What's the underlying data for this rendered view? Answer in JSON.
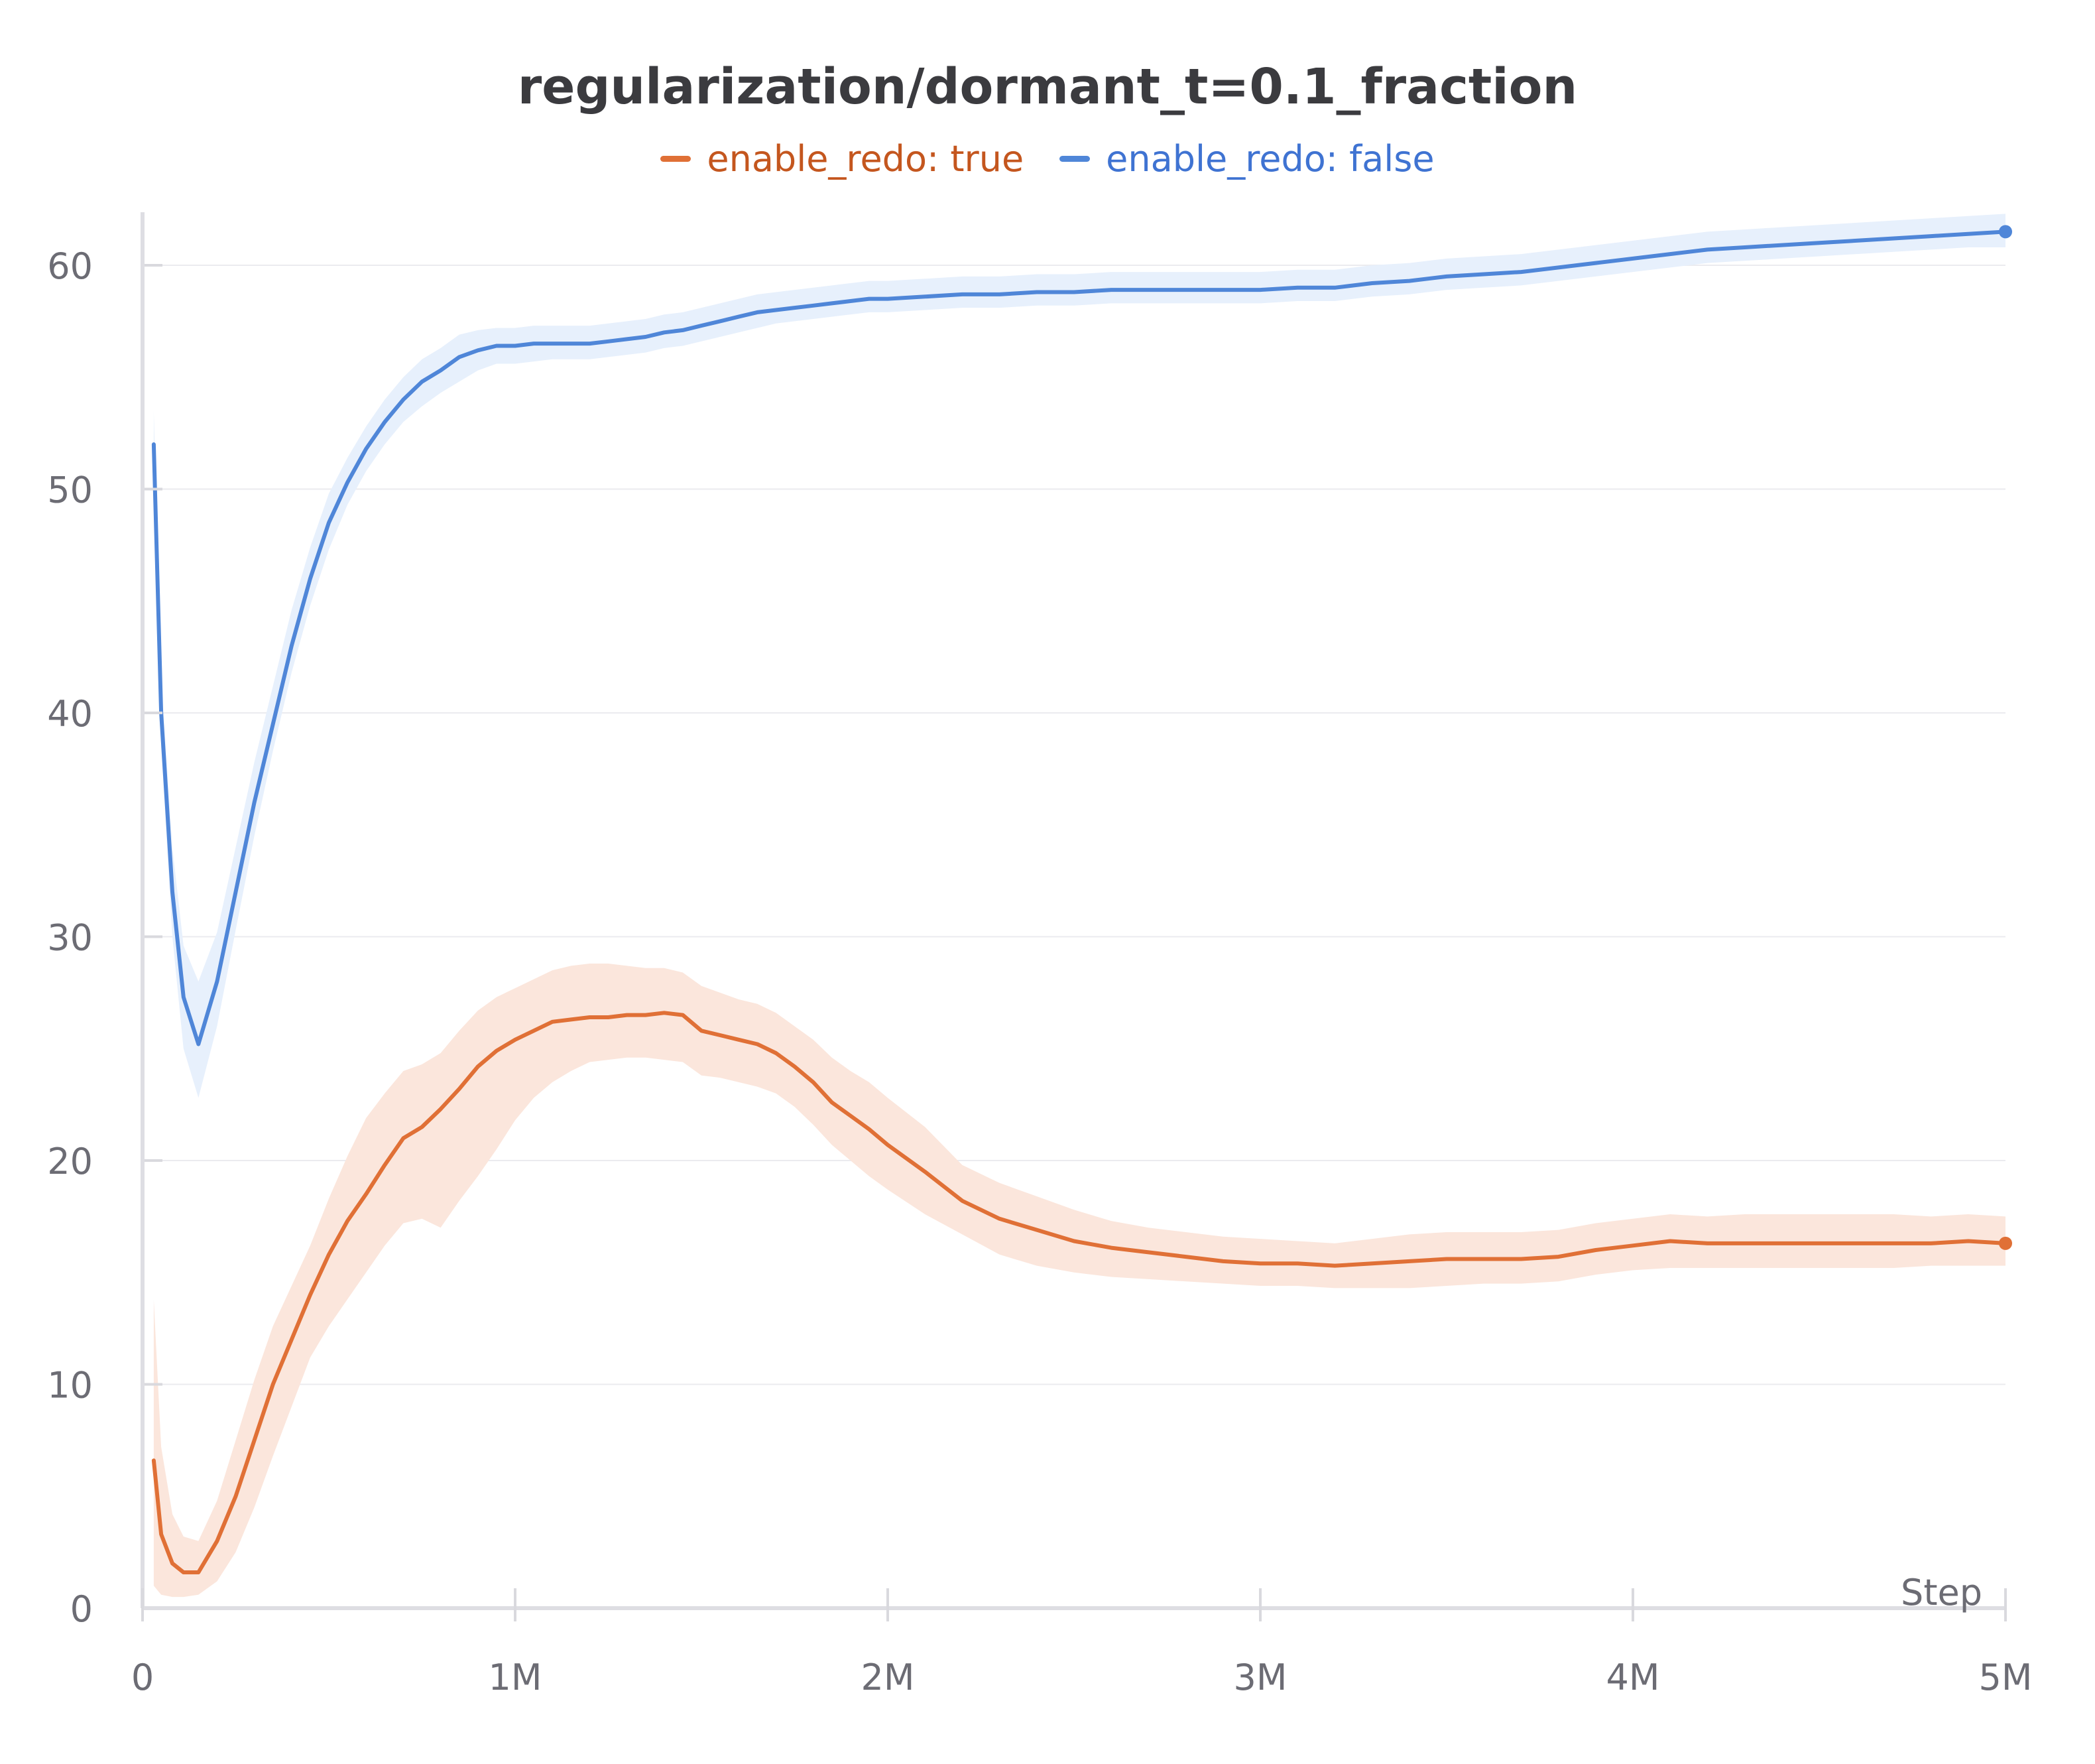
{
  "chart_data": {
    "type": "line",
    "title": "regularization/dormant_t=0.1_fraction",
    "xlabel": "Step",
    "ylabel": "",
    "xlim": [
      0,
      5000000
    ],
    "ylim": [
      0,
      62
    ],
    "grid": true,
    "legend_position": "top-center",
    "x_ticks": [
      {
        "value": 0,
        "label": "0"
      },
      {
        "value": 1000000,
        "label": "1M"
      },
      {
        "value": 2000000,
        "label": "2M"
      },
      {
        "value": 3000000,
        "label": "3M"
      },
      {
        "value": 4000000,
        "label": "4M"
      },
      {
        "value": 5000000,
        "label": "5M"
      }
    ],
    "y_ticks": [
      {
        "value": 0,
        "label": "0"
      },
      {
        "value": 10,
        "label": "10"
      },
      {
        "value": 20,
        "label": "20"
      },
      {
        "value": 30,
        "label": "30"
      },
      {
        "value": 40,
        "label": "40"
      },
      {
        "value": 50,
        "label": "50"
      },
      {
        "value": 60,
        "label": "60"
      }
    ],
    "series": [
      {
        "name": "enable_redo: true",
        "color": "#e07036",
        "band_color": "#fbe6dc",
        "legend_text_color": "#c4561e",
        "x": [
          30000,
          50000,
          80000,
          110000,
          150000,
          200000,
          250000,
          300000,
          350000,
          400000,
          450000,
          500000,
          550000,
          600000,
          650000,
          700000,
          750000,
          800000,
          850000,
          900000,
          950000,
          1000000,
          1050000,
          1100000,
          1150000,
          1200000,
          1250000,
          1300000,
          1350000,
          1400000,
          1450000,
          1500000,
          1550000,
          1600000,
          1650000,
          1700000,
          1750000,
          1800000,
          1850000,
          1900000,
          1950000,
          2000000,
          2100000,
          2200000,
          2300000,
          2400000,
          2500000,
          2600000,
          2700000,
          2800000,
          2900000,
          3000000,
          3100000,
          3200000,
          3300000,
          3400000,
          3500000,
          3600000,
          3700000,
          3800000,
          3900000,
          4000000,
          4100000,
          4200000,
          4300000,
          4400000,
          4500000,
          4600000,
          4700000,
          4800000,
          4900000,
          5000000
        ],
        "y": [
          6.6,
          3.3,
          2.0,
          1.6,
          1.6,
          3.0,
          5.0,
          7.5,
          10.0,
          12.0,
          14.0,
          15.8,
          17.3,
          18.5,
          19.8,
          21.0,
          21.5,
          22.3,
          23.2,
          24.2,
          24.9,
          25.4,
          25.8,
          26.2,
          26.3,
          26.4,
          26.4,
          26.5,
          26.5,
          26.6,
          26.5,
          25.8,
          25.6,
          25.4,
          25.2,
          24.8,
          24.2,
          23.5,
          22.6,
          22.0,
          21.4,
          20.7,
          19.5,
          18.2,
          17.4,
          16.9,
          16.4,
          16.1,
          15.9,
          15.7,
          15.5,
          15.4,
          15.4,
          15.3,
          15.4,
          15.5,
          15.6,
          15.6,
          15.6,
          15.7,
          16.0,
          16.2,
          16.4,
          16.3,
          16.3,
          16.3,
          16.3,
          16.3,
          16.3,
          16.3,
          16.4,
          16.3
        ],
        "lower": [
          1.0,
          0.6,
          0.5,
          0.5,
          0.6,
          1.2,
          2.5,
          4.5,
          6.8,
          9.0,
          11.2,
          12.6,
          13.8,
          15.0,
          16.2,
          17.2,
          17.4,
          17.0,
          18.2,
          19.3,
          20.5,
          21.8,
          22.8,
          23.5,
          24.0,
          24.4,
          24.5,
          24.6,
          24.6,
          24.5,
          24.4,
          23.8,
          23.7,
          23.5,
          23.3,
          23.0,
          22.4,
          21.6,
          20.7,
          20.0,
          19.3,
          18.7,
          17.6,
          16.7,
          15.8,
          15.3,
          15.0,
          14.8,
          14.7,
          14.6,
          14.5,
          14.4,
          14.4,
          14.3,
          14.3,
          14.3,
          14.4,
          14.5,
          14.5,
          14.6,
          14.9,
          15.1,
          15.2,
          15.2,
          15.2,
          15.2,
          15.2,
          15.2,
          15.2,
          15.3,
          15.3,
          15.3
        ],
        "upper": [
          13.8,
          7.2,
          4.2,
          3.2,
          3.0,
          4.8,
          7.5,
          10.2,
          12.6,
          14.4,
          16.2,
          18.3,
          20.2,
          21.9,
          23.0,
          24.0,
          24.3,
          24.8,
          25.8,
          26.7,
          27.3,
          27.7,
          28.1,
          28.5,
          28.7,
          28.8,
          28.8,
          28.7,
          28.6,
          28.6,
          28.4,
          27.8,
          27.5,
          27.2,
          27.0,
          26.6,
          26.0,
          25.4,
          24.6,
          24.0,
          23.5,
          22.8,
          21.5,
          19.8,
          19.0,
          18.4,
          17.8,
          17.3,
          17.0,
          16.8,
          16.6,
          16.5,
          16.4,
          16.3,
          16.5,
          16.7,
          16.8,
          16.8,
          16.8,
          16.9,
          17.2,
          17.4,
          17.6,
          17.5,
          17.6,
          17.6,
          17.6,
          17.6,
          17.6,
          17.5,
          17.6,
          17.5
        ]
      },
      {
        "name": "enable_redo: false",
        "color": "#4f86d8",
        "band_color": "#e7f0fc",
        "legend_text_color": "#3f73d2",
        "x": [
          30000,
          50000,
          80000,
          110000,
          150000,
          200000,
          250000,
          300000,
          350000,
          400000,
          450000,
          500000,
          550000,
          600000,
          650000,
          700000,
          750000,
          800000,
          850000,
          900000,
          950000,
          1000000,
          1050000,
          1100000,
          1150000,
          1200000,
          1250000,
          1300000,
          1350000,
          1400000,
          1450000,
          1500000,
          1550000,
          1600000,
          1650000,
          1700000,
          1750000,
          1800000,
          1850000,
          1900000,
          1950000,
          2000000,
          2100000,
          2200000,
          2300000,
          2400000,
          2500000,
          2600000,
          2700000,
          2800000,
          2900000,
          3000000,
          3100000,
          3200000,
          3300000,
          3400000,
          3500000,
          3600000,
          3700000,
          3800000,
          3900000,
          4000000,
          4100000,
          4200000,
          4300000,
          4400000,
          4500000,
          4600000,
          4700000,
          4800000,
          4900000,
          5000000
        ],
        "y": [
          52.0,
          40.0,
          32.0,
          27.3,
          25.2,
          28.0,
          32.0,
          36.0,
          39.5,
          43.0,
          46.0,
          48.5,
          50.3,
          51.8,
          53.0,
          54.0,
          54.8,
          55.3,
          55.9,
          56.2,
          56.4,
          56.4,
          56.5,
          56.5,
          56.5,
          56.5,
          56.6,
          56.7,
          56.8,
          57.0,
          57.1,
          57.3,
          57.5,
          57.7,
          57.9,
          58.0,
          58.1,
          58.2,
          58.3,
          58.4,
          58.5,
          58.5,
          58.6,
          58.7,
          58.7,
          58.8,
          58.8,
          58.9,
          58.9,
          58.9,
          58.9,
          58.9,
          59.0,
          59.0,
          59.2,
          59.3,
          59.5,
          59.6,
          59.7,
          59.9,
          60.1,
          60.3,
          60.5,
          60.7,
          60.8,
          60.9,
          61.0,
          61.1,
          61.2,
          61.3,
          61.4,
          61.5
        ],
        "lower": [
          50.0,
          38.5,
          30.0,
          25.0,
          22.8,
          26.0,
          30.3,
          34.5,
          38.3,
          41.8,
          44.8,
          47.3,
          49.3,
          50.8,
          52.0,
          53.0,
          53.7,
          54.3,
          54.8,
          55.3,
          55.6,
          55.6,
          55.7,
          55.8,
          55.8,
          55.8,
          55.9,
          56.0,
          56.1,
          56.3,
          56.4,
          56.6,
          56.8,
          57.0,
          57.2,
          57.4,
          57.5,
          57.6,
          57.7,
          57.8,
          57.9,
          57.9,
          58.0,
          58.1,
          58.1,
          58.2,
          58.2,
          58.3,
          58.3,
          58.3,
          58.3,
          58.3,
          58.4,
          58.4,
          58.6,
          58.7,
          58.9,
          59.0,
          59.1,
          59.3,
          59.5,
          59.7,
          59.9,
          60.1,
          60.2,
          60.3,
          60.4,
          60.5,
          60.6,
          60.7,
          60.8,
          60.8
        ],
        "upper": [
          53.5,
          41.5,
          34.0,
          29.6,
          28.0,
          30.2,
          34.0,
          37.8,
          41.2,
          44.6,
          47.4,
          49.8,
          51.4,
          52.8,
          54.0,
          55.0,
          55.8,
          56.3,
          56.9,
          57.1,
          57.2,
          57.2,
          57.3,
          57.3,
          57.3,
          57.3,
          57.4,
          57.5,
          57.6,
          57.8,
          57.9,
          58.1,
          58.3,
          58.5,
          58.7,
          58.8,
          58.9,
          59.0,
          59.1,
          59.2,
          59.3,
          59.3,
          59.4,
          59.5,
          59.5,
          59.6,
          59.6,
          59.7,
          59.7,
          59.7,
          59.7,
          59.7,
          59.8,
          59.8,
          60.0,
          60.1,
          60.3,
          60.4,
          60.5,
          60.7,
          60.9,
          61.1,
          61.3,
          61.5,
          61.6,
          61.7,
          61.8,
          61.9,
          62.0,
          62.1,
          62.2,
          62.3
        ]
      }
    ]
  }
}
